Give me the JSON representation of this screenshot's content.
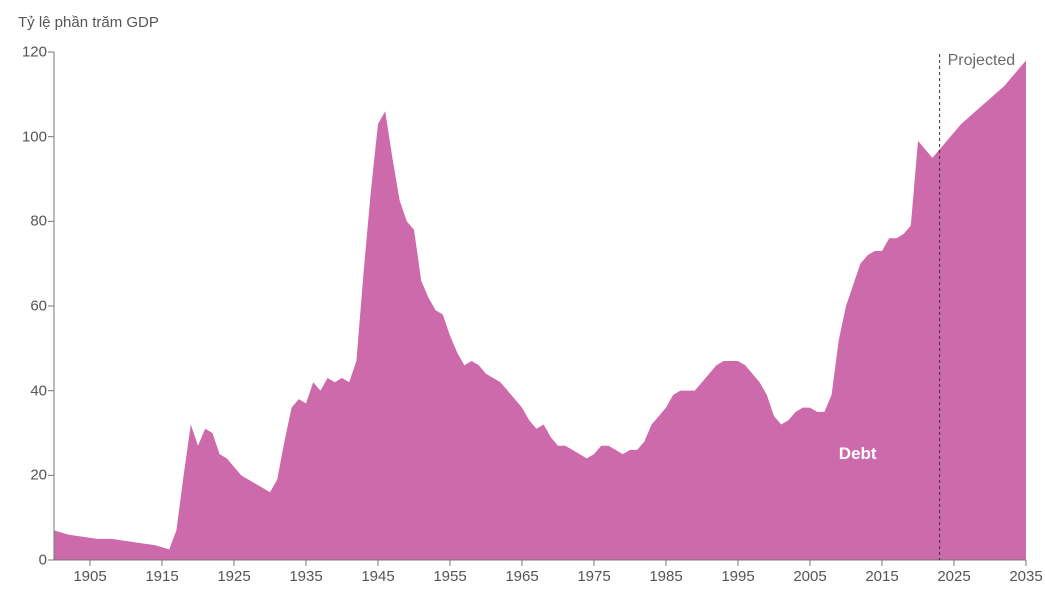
{
  "subtitle": "Tỷ lệ phần trăm GDP",
  "chart": {
    "type": "area",
    "background_color": "#ffffff",
    "fill_color": "#cd6aab",
    "fill_opacity": 1.0,
    "axis_color": "#777777",
    "tick_label_color": "#555555",
    "tick_label_fontsize": 15,
    "ylim": [
      0,
      120
    ],
    "ytick_step": 20,
    "yticks": [
      0,
      20,
      40,
      60,
      80,
      100,
      120
    ],
    "xlim": [
      1900,
      2035
    ],
    "xticks": [
      1905,
      1915,
      1925,
      1935,
      1945,
      1955,
      1965,
      1975,
      1985,
      1995,
      2005,
      2015,
      2025,
      2035
    ],
    "projected": {
      "divider_year": 2023,
      "line_color": "#333333",
      "dash": "3,3",
      "label": "Projected",
      "label_color": "#6b6b6b",
      "label_fontsize": 16
    },
    "series_label": {
      "text": "Debt",
      "x_year": 2009,
      "y_value": 25,
      "color": "#ffffff",
      "fontsize": 17,
      "weight": "bold"
    },
    "data": [
      {
        "year": 1900,
        "value": 7
      },
      {
        "year": 1902,
        "value": 6
      },
      {
        "year": 1904,
        "value": 5.5
      },
      {
        "year": 1906,
        "value": 5
      },
      {
        "year": 1908,
        "value": 5
      },
      {
        "year": 1910,
        "value": 4.5
      },
      {
        "year": 1912,
        "value": 4
      },
      {
        "year": 1914,
        "value": 3.5
      },
      {
        "year": 1915,
        "value": 3
      },
      {
        "year": 1916,
        "value": 2.5
      },
      {
        "year": 1917,
        "value": 7
      },
      {
        "year": 1918,
        "value": 20
      },
      {
        "year": 1919,
        "value": 32
      },
      {
        "year": 1920,
        "value": 27
      },
      {
        "year": 1921,
        "value": 31
      },
      {
        "year": 1922,
        "value": 30
      },
      {
        "year": 1923,
        "value": 25
      },
      {
        "year": 1924,
        "value": 24
      },
      {
        "year": 1925,
        "value": 22
      },
      {
        "year": 1926,
        "value": 20
      },
      {
        "year": 1927,
        "value": 19
      },
      {
        "year": 1928,
        "value": 18
      },
      {
        "year": 1929,
        "value": 17
      },
      {
        "year": 1930,
        "value": 16
      },
      {
        "year": 1931,
        "value": 19
      },
      {
        "year": 1932,
        "value": 28
      },
      {
        "year": 1933,
        "value": 36
      },
      {
        "year": 1934,
        "value": 38
      },
      {
        "year": 1935,
        "value": 37
      },
      {
        "year": 1936,
        "value": 42
      },
      {
        "year": 1937,
        "value": 40
      },
      {
        "year": 1938,
        "value": 43
      },
      {
        "year": 1939,
        "value": 42
      },
      {
        "year": 1940,
        "value": 43
      },
      {
        "year": 1941,
        "value": 42
      },
      {
        "year": 1942,
        "value": 47
      },
      {
        "year": 1943,
        "value": 68
      },
      {
        "year": 1944,
        "value": 87
      },
      {
        "year": 1945,
        "value": 103
      },
      {
        "year": 1946,
        "value": 106
      },
      {
        "year": 1947,
        "value": 95
      },
      {
        "year": 1948,
        "value": 85
      },
      {
        "year": 1949,
        "value": 80
      },
      {
        "year": 1950,
        "value": 78
      },
      {
        "year": 1951,
        "value": 66
      },
      {
        "year": 1952,
        "value": 62
      },
      {
        "year": 1953,
        "value": 59
      },
      {
        "year": 1954,
        "value": 58
      },
      {
        "year": 1955,
        "value": 53
      },
      {
        "year": 1956,
        "value": 49
      },
      {
        "year": 1957,
        "value": 46
      },
      {
        "year": 1958,
        "value": 47
      },
      {
        "year": 1959,
        "value": 46
      },
      {
        "year": 1960,
        "value": 44
      },
      {
        "year": 1961,
        "value": 43
      },
      {
        "year": 1962,
        "value": 42
      },
      {
        "year": 1963,
        "value": 40
      },
      {
        "year": 1964,
        "value": 38
      },
      {
        "year": 1965,
        "value": 36
      },
      {
        "year": 1966,
        "value": 33
      },
      {
        "year": 1967,
        "value": 31
      },
      {
        "year": 1968,
        "value": 32
      },
      {
        "year": 1969,
        "value": 29
      },
      {
        "year": 1970,
        "value": 27
      },
      {
        "year": 1971,
        "value": 27
      },
      {
        "year": 1972,
        "value": 26
      },
      {
        "year": 1973,
        "value": 25
      },
      {
        "year": 1974,
        "value": 24
      },
      {
        "year": 1975,
        "value": 25
      },
      {
        "year": 1976,
        "value": 27
      },
      {
        "year": 1977,
        "value": 27
      },
      {
        "year": 1978,
        "value": 26
      },
      {
        "year": 1979,
        "value": 25
      },
      {
        "year": 1980,
        "value": 26
      },
      {
        "year": 1981,
        "value": 26
      },
      {
        "year": 1982,
        "value": 28
      },
      {
        "year": 1983,
        "value": 32
      },
      {
        "year": 1984,
        "value": 34
      },
      {
        "year": 1985,
        "value": 36
      },
      {
        "year": 1986,
        "value": 39
      },
      {
        "year": 1987,
        "value": 40
      },
      {
        "year": 1988,
        "value": 40
      },
      {
        "year": 1989,
        "value": 40
      },
      {
        "year": 1990,
        "value": 42
      },
      {
        "year": 1991,
        "value": 44
      },
      {
        "year": 1992,
        "value": 46
      },
      {
        "year": 1993,
        "value": 47
      },
      {
        "year": 1994,
        "value": 47
      },
      {
        "year": 1995,
        "value": 47
      },
      {
        "year": 1996,
        "value": 46
      },
      {
        "year": 1997,
        "value": 44
      },
      {
        "year": 1998,
        "value": 42
      },
      {
        "year": 1999,
        "value": 39
      },
      {
        "year": 2000,
        "value": 34
      },
      {
        "year": 2001,
        "value": 32
      },
      {
        "year": 2002,
        "value": 33
      },
      {
        "year": 2003,
        "value": 35
      },
      {
        "year": 2004,
        "value": 36
      },
      {
        "year": 2005,
        "value": 36
      },
      {
        "year": 2006,
        "value": 35
      },
      {
        "year": 2007,
        "value": 35
      },
      {
        "year": 2008,
        "value": 39
      },
      {
        "year": 2009,
        "value": 52
      },
      {
        "year": 2010,
        "value": 60
      },
      {
        "year": 2011,
        "value": 65
      },
      {
        "year": 2012,
        "value": 70
      },
      {
        "year": 2013,
        "value": 72
      },
      {
        "year": 2014,
        "value": 73
      },
      {
        "year": 2015,
        "value": 73
      },
      {
        "year": 2016,
        "value": 76
      },
      {
        "year": 2017,
        "value": 76
      },
      {
        "year": 2018,
        "value": 77
      },
      {
        "year": 2019,
        "value": 79
      },
      {
        "year": 2020,
        "value": 99
      },
      {
        "year": 2021,
        "value": 97
      },
      {
        "year": 2022,
        "value": 95
      },
      {
        "year": 2023,
        "value": 97
      },
      {
        "year": 2024,
        "value": 99
      },
      {
        "year": 2026,
        "value": 103
      },
      {
        "year": 2028,
        "value": 106
      },
      {
        "year": 2030,
        "value": 109
      },
      {
        "year": 2032,
        "value": 112
      },
      {
        "year": 2034,
        "value": 116
      },
      {
        "year": 2035,
        "value": 118
      }
    ]
  }
}
